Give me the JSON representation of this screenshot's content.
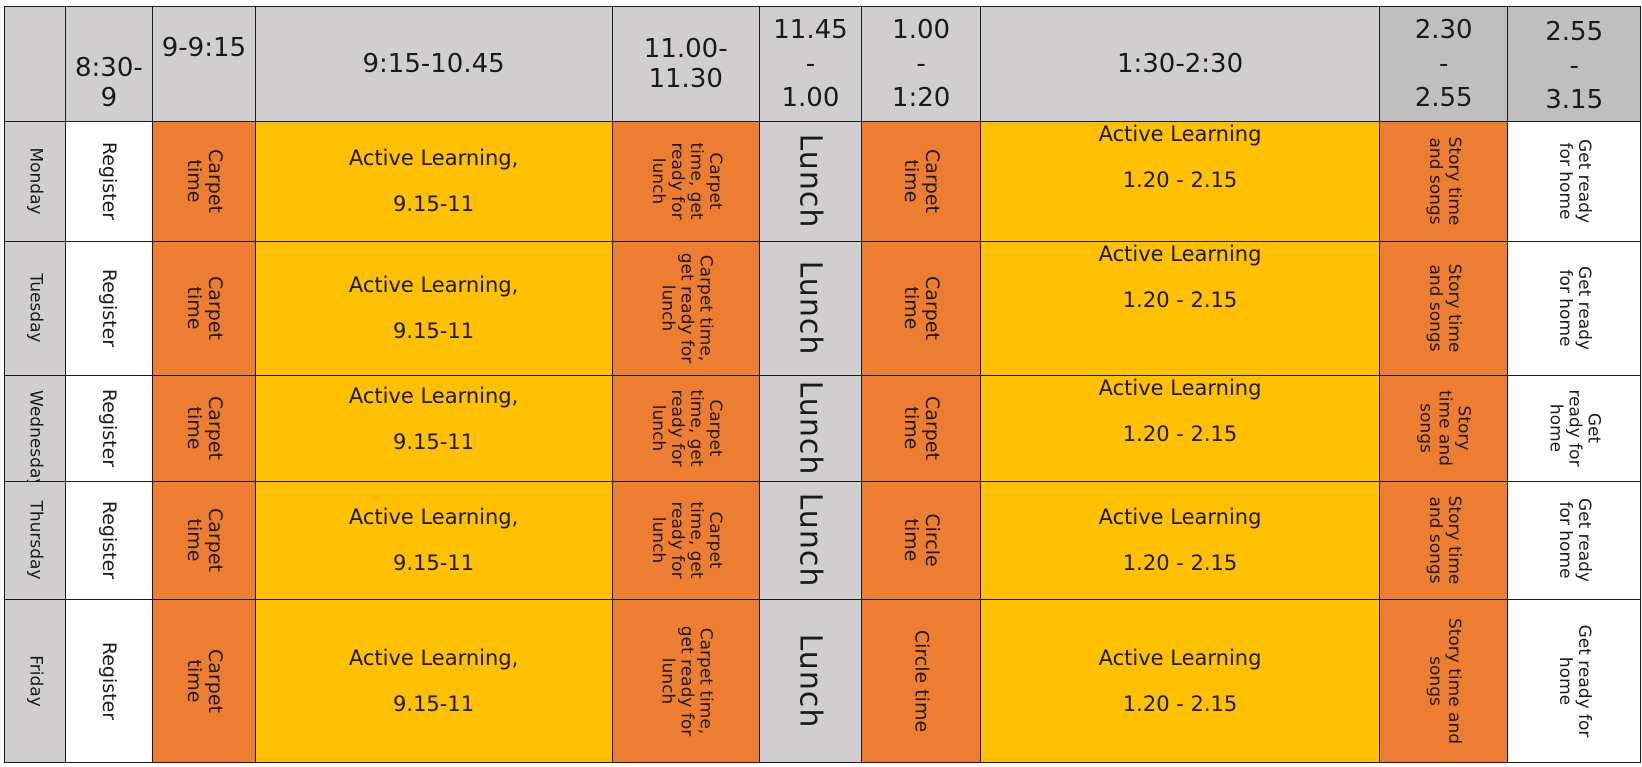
{
  "colors": {
    "header_gray": "#d0cece",
    "header_dark_gray": "#bfbfbf",
    "day_gray": "#d0cece",
    "orange": "#ed7d31",
    "yellow": "#ffc000",
    "white": "#ffffff"
  },
  "headers": [
    {
      "id": "day",
      "lines": []
    },
    {
      "id": "s830",
      "lines": [
        "8:30-",
        "9"
      ]
    },
    {
      "id": "s9",
      "lines": [
        "9-9:15"
      ]
    },
    {
      "id": "s915",
      "lines": [
        "9:15-10.45"
      ]
    },
    {
      "id": "s1100",
      "lines": [
        "11.00-",
        "11.30"
      ]
    },
    {
      "id": "s1145",
      "lines": [
        "11.45",
        "-",
        "1.00"
      ]
    },
    {
      "id": "s100",
      "lines": [
        "1.00",
        "-",
        "1:20"
      ]
    },
    {
      "id": "s130",
      "lines": [
        "1:30-2:30"
      ]
    },
    {
      "id": "s230",
      "lines": [
        "2.30",
        "-",
        "2.55"
      ]
    },
    {
      "id": "s255",
      "lines": [
        "2.55",
        "-",
        "3.15"
      ]
    }
  ],
  "rows": [
    {
      "day": "Monday",
      "register": "Register",
      "carpet": "Carpet time",
      "active_am": {
        "title": "Active Learning,",
        "time": "9.15-11"
      },
      "prelunch": "Carpet time, get ready for lunch",
      "lunch": "Lunch",
      "afternoon_carpet": "Carpet time",
      "active_pm": {
        "title": "Active Learning",
        "time": "1.20 - 2.15"
      },
      "story": "Story time and songs",
      "home": "Get ready for home"
    },
    {
      "day": "Tuesday",
      "register": "Register",
      "carpet": "Carpet time",
      "active_am": {
        "title": "Active Learning,",
        "time": "9.15-11"
      },
      "prelunch": "Carpet time, get ready for lunch",
      "lunch": "Lunch",
      "afternoon_carpet": "Carpet time",
      "active_pm": {
        "title": "Active Learning",
        "time": "1.20 - 2.15"
      },
      "story": "Story time and songs",
      "home": "Get ready for home"
    },
    {
      "day": "Wednesday",
      "register": "Register",
      "carpet": "Carpet time",
      "active_am": {
        "title": "Active Learning,",
        "time": "9.15-11"
      },
      "prelunch": "Carpet time, get ready for lunch",
      "lunch": "Lunch",
      "afternoon_carpet": "Carpet time",
      "active_pm": {
        "title": "Active Learning",
        "time": "1.20 - 2.15"
      },
      "story": "Story time and songs",
      "home": "Get ready for home"
    },
    {
      "day": "Thursday",
      "register": "Register",
      "carpet": "Carpet time",
      "active_am": {
        "title": "Active Learning,",
        "time": "9.15-11"
      },
      "prelunch": "Carpet time, get ready for lunch",
      "lunch": "Lunch",
      "afternoon_carpet": "Circle time",
      "active_pm": {
        "title": "Active Learning",
        "time": "1.20 - 2.15"
      },
      "story": "Story time and songs",
      "home": "Get ready for home"
    },
    {
      "day": "Friday",
      "register": "Register",
      "carpet": "Carpet time",
      "active_am": {
        "title": "Active Learning,",
        "time": "9.15-11"
      },
      "prelunch": "Carpet time, get ready for lunch",
      "lunch": "Lunch",
      "afternoon_carpet": "Circle time",
      "active_pm": {
        "title": "Active Learning",
        "time": "1.20 - 2.15"
      },
      "story": "Story time and songs",
      "home": "Get ready for home"
    }
  ]
}
